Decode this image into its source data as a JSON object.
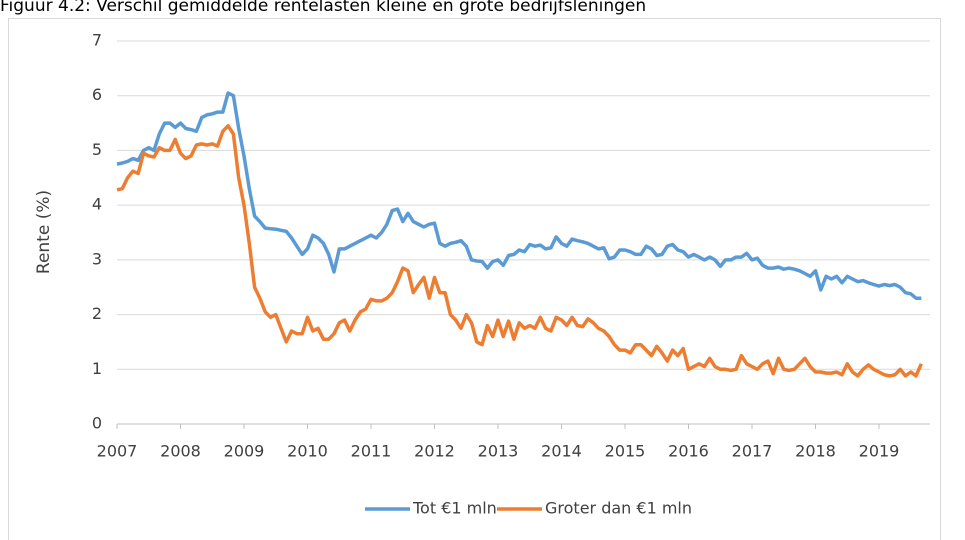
{
  "chart_data": {
    "type": "line",
    "title": "Figuur 4.2: Verschil gemiddelde rentelasten kleine en grote bedrijfsleningen",
    "ylabel": "Rente (%)",
    "categories": [
      "2007",
      null,
      null,
      null,
      null,
      null,
      null,
      null,
      null,
      null,
      null,
      null,
      "2008",
      null,
      null,
      null,
      null,
      null,
      null,
      null,
      null,
      null,
      null,
      null,
      "2009",
      null,
      null,
      null,
      null,
      null,
      null,
      null,
      null,
      null,
      null,
      null,
      "2010",
      null,
      null,
      null,
      null,
      null,
      null,
      null,
      null,
      null,
      null,
      null,
      "2011",
      null,
      null,
      null,
      null,
      null,
      null,
      null,
      null,
      null,
      null,
      null,
      "2012",
      null,
      null,
      null,
      null,
      null,
      null,
      null,
      null,
      null,
      null,
      null,
      "2013",
      null,
      null,
      null,
      null,
      null,
      null,
      null,
      null,
      null,
      null,
      null,
      "2014",
      null,
      null,
      null,
      null,
      null,
      null,
      null,
      null,
      null,
      null,
      null,
      "2015",
      null,
      null,
      null,
      null,
      null,
      null,
      null,
      null,
      null,
      null,
      null,
      "2016",
      null,
      null,
      null,
      null,
      null,
      null,
      null,
      null,
      null,
      null,
      null,
      "2017",
      null,
      null,
      null,
      null,
      null,
      null,
      null,
      null,
      null,
      null,
      null,
      "2018",
      null,
      null,
      null,
      null,
      null,
      null,
      null,
      null,
      null,
      null,
      null,
      "2019",
      null,
      null,
      null,
      null,
      null,
      null,
      null,
      null
    ],
    "series": [
      {
        "name": "Tot €1 mln",
        "color": "#5b9bd5",
        "values": [
          4.75,
          4.77,
          4.8,
          4.85,
          4.82,
          5.0,
          5.05,
          5.0,
          5.3,
          5.5,
          5.5,
          5.42,
          5.5,
          5.4,
          5.38,
          5.35,
          5.6,
          5.65,
          5.67,
          5.7,
          5.7,
          6.05,
          6.0,
          5.4,
          4.9,
          4.3,
          3.8,
          3.7,
          3.58,
          3.57,
          3.56,
          3.54,
          3.52,
          3.4,
          3.25,
          3.1,
          3.2,
          3.45,
          3.4,
          3.3,
          3.1,
          2.78,
          3.2,
          3.2,
          3.25,
          3.3,
          3.35,
          3.4,
          3.45,
          3.4,
          3.5,
          3.65,
          3.9,
          3.93,
          3.7,
          3.85,
          3.7,
          3.65,
          3.6,
          3.65,
          3.67,
          3.3,
          3.25,
          3.3,
          3.32,
          3.35,
          3.25,
          3.0,
          2.98,
          2.97,
          2.85,
          2.97,
          3.0,
          2.9,
          3.08,
          3.1,
          3.18,
          3.15,
          3.28,
          3.25,
          3.27,
          3.2,
          3.22,
          3.42,
          3.3,
          3.25,
          3.38,
          3.35,
          3.33,
          3.3,
          3.25,
          3.2,
          3.22,
          3.02,
          3.05,
          3.18,
          3.18,
          3.15,
          3.1,
          3.1,
          3.25,
          3.2,
          3.08,
          3.1,
          3.25,
          3.28,
          3.18,
          3.15,
          3.05,
          3.1,
          3.05,
          3.0,
          3.05,
          3.0,
          2.88,
          3.0,
          3.0,
          3.05,
          3.05,
          3.12,
          3.0,
          3.03,
          2.9,
          2.85,
          2.85,
          2.87,
          2.83,
          2.85,
          2.83,
          2.8,
          2.75,
          2.7,
          2.8,
          2.45,
          2.7,
          2.65,
          2.7,
          2.58,
          2.7,
          2.65,
          2.6,
          2.62,
          2.58,
          2.55,
          2.52,
          2.55,
          2.53,
          2.55,
          2.5,
          2.4,
          2.38,
          2.3,
          2.3
        ]
      },
      {
        "name": "Groter dan €1 mln",
        "color": "#ed7d31",
        "values": [
          4.28,
          4.3,
          4.5,
          4.62,
          4.58,
          4.95,
          4.9,
          4.88,
          5.05,
          5.0,
          5.0,
          5.2,
          4.95,
          4.85,
          4.9,
          5.1,
          5.12,
          5.1,
          5.12,
          5.08,
          5.35,
          5.45,
          5.3,
          4.5,
          4.0,
          3.3,
          2.5,
          2.3,
          2.05,
          1.95,
          2.0,
          1.75,
          1.5,
          1.7,
          1.65,
          1.65,
          1.95,
          1.7,
          1.75,
          1.55,
          1.55,
          1.65,
          1.85,
          1.9,
          1.7,
          1.9,
          2.05,
          2.1,
          2.28,
          2.25,
          2.25,
          2.3,
          2.4,
          2.6,
          2.85,
          2.8,
          2.4,
          2.55,
          2.68,
          2.3,
          2.68,
          2.4,
          2.4,
          2.0,
          1.9,
          1.75,
          2.0,
          1.85,
          1.5,
          1.45,
          1.8,
          1.6,
          1.9,
          1.6,
          1.88,
          1.55,
          1.85,
          1.75,
          1.8,
          1.75,
          1.95,
          1.75,
          1.7,
          1.95,
          1.9,
          1.8,
          1.95,
          1.8,
          1.78,
          1.92,
          1.85,
          1.75,
          1.7,
          1.6,
          1.45,
          1.35,
          1.35,
          1.3,
          1.45,
          1.45,
          1.35,
          1.25,
          1.42,
          1.3,
          1.15,
          1.35,
          1.25,
          1.38,
          1.0,
          1.05,
          1.1,
          1.05,
          1.2,
          1.05,
          1.0,
          1.0,
          0.98,
          1.0,
          1.25,
          1.1,
          1.05,
          1.0,
          1.1,
          1.15,
          0.92,
          1.2,
          1.0,
          0.98,
          1.0,
          1.1,
          1.2,
          1.05,
          0.95,
          0.95,
          0.93,
          0.93,
          0.95,
          0.9,
          1.1,
          0.95,
          0.88,
          1.0,
          1.08,
          1.0,
          0.95,
          0.9,
          0.88,
          0.9,
          1.0,
          0.88,
          0.95,
          0.88,
          1.1
        ]
      }
    ],
    "ylim": [
      0,
      7
    ],
    "yticks": [
      0,
      1,
      2,
      3,
      4,
      5,
      6,
      7
    ],
    "grid": true,
    "legend": "bottom"
  }
}
